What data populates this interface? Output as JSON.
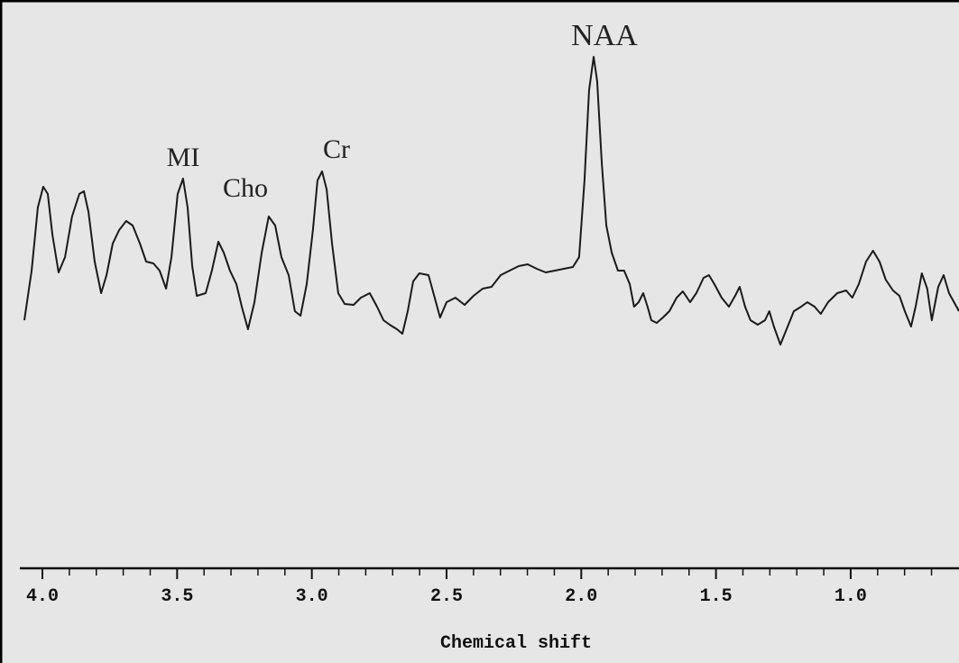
{
  "chart_data": {
    "type": "line",
    "xlabel": "Chemical shift",
    "annotations": [
      "MI",
      "Cho",
      "Cr",
      "NAA"
    ],
    "xlim": [
      4.067,
      0.598
    ],
    "ylim": [
      0,
      600
    ],
    "xticks": [
      {
        "value": 4.0,
        "label": "4.0"
      },
      {
        "value": 3.5,
        "label": "3.5"
      },
      {
        "value": 3.0,
        "label": "3.0"
      },
      {
        "value": 2.5,
        "label": "2.5"
      },
      {
        "value": 2.0,
        "label": "2.0"
      },
      {
        "value": 1.5,
        "label": "1.5"
      },
      {
        "value": 1.0,
        "label": "1.0"
      }
    ],
    "xminorticks": [
      3.9,
      3.8,
      3.7,
      3.6,
      3.4,
      3.3,
      3.2,
      3.1,
      2.9,
      2.8,
      2.7,
      2.6,
      2.4,
      2.3,
      2.2,
      2.1,
      1.9,
      1.8,
      1.7,
      1.6,
      1.4,
      1.3,
      1.2,
      1.1,
      0.9,
      0.8,
      0.7
    ],
    "x": [
      4.067,
      4.04,
      4.017,
      3.997,
      3.98,
      3.963,
      3.94,
      3.916,
      3.89,
      3.863,
      3.846,
      3.829,
      3.806,
      3.782,
      3.762,
      3.739,
      3.715,
      3.689,
      3.665,
      3.638,
      3.615,
      3.588,
      3.565,
      3.541,
      3.521,
      3.498,
      3.478,
      3.461,
      3.444,
      3.427,
      3.394,
      3.371,
      3.347,
      3.327,
      3.304,
      3.28,
      3.26,
      3.237,
      3.213,
      3.186,
      3.16,
      3.136,
      3.113,
      3.086,
      3.063,
      3.042,
      3.019,
      2.996,
      2.979,
      2.962,
      2.945,
      2.925,
      2.902,
      2.878,
      2.845,
      2.818,
      2.785,
      2.758,
      2.734,
      2.711,
      2.684,
      2.664,
      2.644,
      2.624,
      2.601,
      2.567,
      2.544,
      2.524,
      2.5,
      2.467,
      2.433,
      2.4,
      2.366,
      2.333,
      2.299,
      2.266,
      2.232,
      2.199,
      2.165,
      2.132,
      2.098,
      2.065,
      2.031,
      2.008,
      1.988,
      1.971,
      1.954,
      1.941,
      1.924,
      1.907,
      1.887,
      1.864,
      1.841,
      1.82,
      1.804,
      1.787,
      1.77,
      1.754,
      1.74,
      1.72,
      1.697,
      1.673,
      1.646,
      1.623,
      1.596,
      1.573,
      1.546,
      1.526,
      1.506,
      1.479,
      1.452,
      1.429,
      1.412,
      1.392,
      1.372,
      1.345,
      1.318,
      1.302,
      1.285,
      1.261,
      1.238,
      1.211,
      1.184,
      1.161,
      1.134,
      1.111,
      1.084,
      1.05,
      1.017,
      0.994,
      0.97,
      0.943,
      0.917,
      0.893,
      0.87,
      0.843,
      0.819,
      0.799,
      0.776,
      0.759,
      0.736,
      0.716,
      0.699,
      0.675,
      0.655,
      0.635,
      0.598
    ],
    "series": [
      {
        "color": "#1a1a1a",
        "values": [
          275,
          330,
          400,
          423,
          415,
          370,
          328,
          345,
          390,
          415,
          418,
          395,
          340,
          305,
          325,
          360,
          375,
          385,
          380,
          360,
          340,
          338,
          330,
          310,
          345,
          415,
          432,
          400,
          335,
          302,
          305,
          330,
          362,
          350,
          330,
          315,
          290,
          265,
          295,
          350,
          390,
          380,
          345,
          325,
          285,
          280,
          315,
          375,
          430,
          440,
          420,
          360,
          305,
          293,
          292,
          300,
          305,
          290,
          275,
          270,
          265,
          260,
          285,
          318,
          327,
          325,
          300,
          278,
          295,
          300,
          292,
          302,
          310,
          312,
          325,
          330,
          335,
          337,
          332,
          328,
          330,
          332,
          334,
          345,
          430,
          530,
          567,
          540,
          450,
          380,
          350,
          330,
          330,
          315,
          290,
          295,
          305,
          290,
          275,
          272,
          278,
          285,
          300,
          307,
          295,
          305,
          322,
          325,
          315,
          300,
          290,
          302,
          312,
          290,
          275,
          270,
          275,
          285,
          268,
          248,
          265,
          285,
          290,
          295,
          290,
          282,
          295,
          305,
          308,
          300,
          315,
          340,
          352,
          340,
          320,
          308,
          302,
          285,
          268,
          290,
          327,
          310,
          275,
          312,
          325,
          305,
          285
        ]
      }
    ]
  }
}
